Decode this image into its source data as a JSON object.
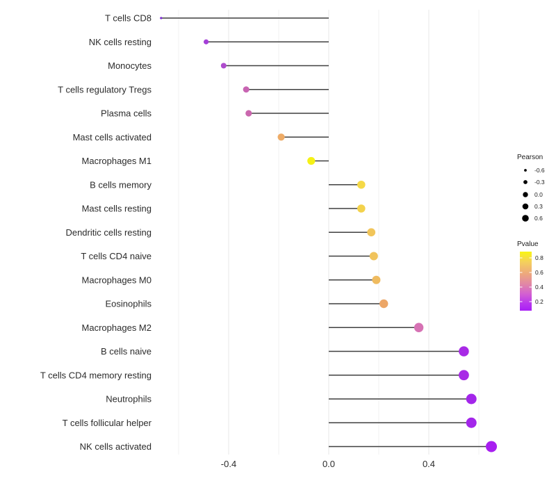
{
  "chart_data": {
    "type": "lollipop",
    "title": "",
    "xlabel": "",
    "ylabel": "",
    "xlim": [
      -0.7,
      0.73
    ],
    "grid": true,
    "x_ticks": [
      {
        "value": -0.4,
        "label": "-0.4"
      },
      {
        "value": 0.0,
        "label": "0.0"
      },
      {
        "value": 0.4,
        "label": "0.4"
      }
    ],
    "gridlines_major": [
      -0.4,
      0.0,
      0.4
    ],
    "gridlines_minor": [
      -0.6,
      -0.2,
      0.2,
      0.6
    ],
    "rows": [
      {
        "label": "T cells CD8",
        "pearson": -0.67,
        "pvalue_est": 0.02,
        "color": "#7b2bd0",
        "radius": 1.6
      },
      {
        "label": "NK cells resting",
        "pearson": -0.49,
        "pvalue_est": 0.16,
        "color": "#a43fd8",
        "radius": 3.6
      },
      {
        "label": "Monocytes",
        "pearson": -0.42,
        "pvalue_est": 0.21,
        "color": "#ae4bcd",
        "radius": 4.0
      },
      {
        "label": "T cells regulatory  Tregs",
        "pearson": -0.33,
        "pvalue_est": 0.32,
        "color": "#c864b2",
        "radius": 4.5
      },
      {
        "label": "Plasma cells",
        "pearson": -0.32,
        "pvalue_est": 0.33,
        "color": "#ca67ae",
        "radius": 4.6
      },
      {
        "label": "Mast cells activated",
        "pearson": -0.19,
        "pvalue_est": 0.52,
        "color": "#eeab66",
        "radius": 5.1
      },
      {
        "label": "Macrophages M1",
        "pearson": -0.07,
        "pvalue_est": 0.85,
        "color": "#f5f116",
        "radius": 5.6
      },
      {
        "label": "B cells memory",
        "pearson": 0.13,
        "pvalue_est": 0.68,
        "color": "#f5d947",
        "radius": 5.8
      },
      {
        "label": "Mast cells resting",
        "pearson": 0.13,
        "pvalue_est": 0.68,
        "color": "#f3d24c",
        "radius": 5.8
      },
      {
        "label": "Dendritic cells resting",
        "pearson": 0.17,
        "pvalue_est": 0.62,
        "color": "#f1c55a",
        "radius": 5.9
      },
      {
        "label": "T cells CD4 naive",
        "pearson": 0.18,
        "pvalue_est": 0.61,
        "color": "#f0c35c",
        "radius": 6.0
      },
      {
        "label": "Macrophages M0",
        "pearson": 0.19,
        "pvalue_est": 0.58,
        "color": "#efbb5f",
        "radius": 6.0
      },
      {
        "label": "Eosinophils",
        "pearson": 0.22,
        "pvalue_est": 0.52,
        "color": "#eca667",
        "radius": 6.2
      },
      {
        "label": "Macrophages M2",
        "pearson": 0.36,
        "pvalue_est": 0.35,
        "color": "#d672b4",
        "radius": 6.7
      },
      {
        "label": "B cells naive",
        "pearson": 0.54,
        "pvalue_est": 0.09,
        "color": "#a82ae6",
        "radius": 7.3
      },
      {
        "label": "T cells CD4 memory resting",
        "pearson": 0.54,
        "pvalue_est": 0.09,
        "color": "#a82ae6",
        "radius": 7.4
      },
      {
        "label": "Neutrophils",
        "pearson": 0.57,
        "pvalue_est": 0.07,
        "color": "#a326ea",
        "radius": 7.5
      },
      {
        "label": "T cells follicular helper",
        "pearson": 0.57,
        "pvalue_est": 0.07,
        "color": "#a326ea",
        "radius": 7.5
      },
      {
        "label": "NK cells activated",
        "pearson": 0.65,
        "pvalue_est": 0.04,
        "color": "#a81ff0",
        "radius": 8.0
      }
    ],
    "legend_size": {
      "title": "Pearson",
      "entries": [
        {
          "label": "-0.6",
          "radius": 1.9
        },
        {
          "label": "-0.3",
          "radius": 2.9
        },
        {
          "label": "0.0",
          "radius": 3.7
        },
        {
          "label": "0.3",
          "radius": 4.3
        },
        {
          "label": "0.6",
          "radius": 4.8
        }
      ],
      "dot_color": "#000000"
    },
    "legend_color": {
      "title": "Pvalue",
      "tick_labels": [
        "0.8",
        "0.6",
        "0.4",
        "0.2"
      ],
      "gradient_top_to_bottom": [
        {
          "offset": "0%",
          "color": "#f9f513"
        },
        {
          "offset": "18%",
          "color": "#f4cf5e"
        },
        {
          "offset": "38%",
          "color": "#eda77e"
        },
        {
          "offset": "55%",
          "color": "#e187a6"
        },
        {
          "offset": "72%",
          "color": "#d25fd2"
        },
        {
          "offset": "88%",
          "color": "#b836ee"
        },
        {
          "offset": "100%",
          "color": "#a81ff5"
        }
      ]
    },
    "style": {
      "line_color": "#3f3f3f",
      "grid_major_color": "#e7e7e7",
      "grid_minor_color": "#f2f2f2",
      "axis_text_color": "#2b2b2b",
      "legend_text_color": "#1a1a1a",
      "background": "#ffffff"
    }
  }
}
